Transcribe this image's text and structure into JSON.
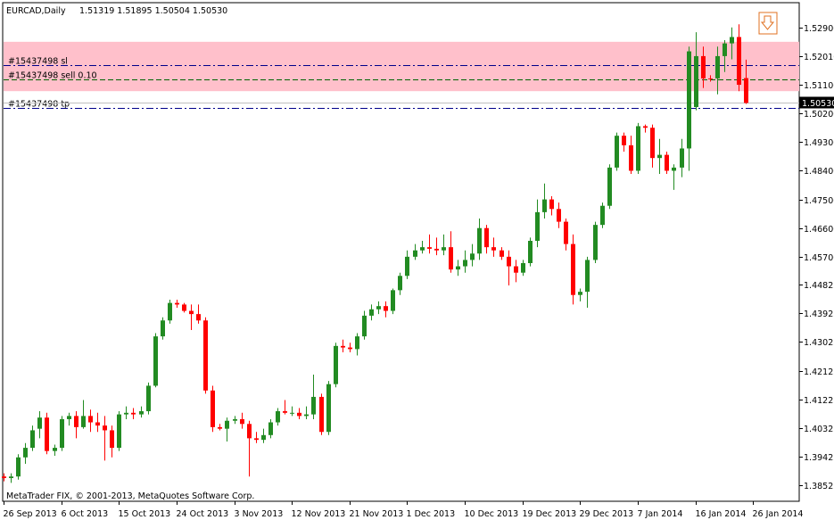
{
  "chart_data": {
    "type": "candlestick",
    "symbol_label": "EURCAD,Daily",
    "ohlc_header": "1.51319 1.51895 1.50504 1.50530",
    "copyright": "MetaTrader FIX, © 2001-2013, MetaQuotes Software Corp.",
    "price_range": [
      1.3805,
      1.5365
    ],
    "price_ticks": [
      "1.52900",
      "1.52010",
      "1.51100",
      "1.50200",
      "1.49300",
      "1.48400",
      "1.47500",
      "1.46600",
      "1.45700",
      "1.44825",
      "1.43925",
      "1.43025",
      "1.42125",
      "1.41225",
      "1.40325",
      "1.39425",
      "1.38525"
    ],
    "x_labels": [
      {
        "bar": 0,
        "text": "26 Sep 2013"
      },
      {
        "bar": 8,
        "text": "6 Oct 2013"
      },
      {
        "bar": 16,
        "text": "15 Oct 2013"
      },
      {
        "bar": 24,
        "text": "24 Oct 2013"
      },
      {
        "bar": 32,
        "text": "3 Nov 2013"
      },
      {
        "bar": 40,
        "text": "12 Nov 2013"
      },
      {
        "bar": 48,
        "text": "21 Nov 2013"
      },
      {
        "bar": 56,
        "text": "1 Dec 2013"
      },
      {
        "bar": 64,
        "text": "10 Dec 2013"
      },
      {
        "bar": 72,
        "text": "19 Dec 2013"
      },
      {
        "bar": 80,
        "text": "29 Dec 2013"
      },
      {
        "bar": 88,
        "text": "7 Jan 2014"
      },
      {
        "bar": 96,
        "text": "16 Jan 2014"
      },
      {
        "bar": 104,
        "text": "26 Jan 2014"
      }
    ],
    "current_price": "1.50530",
    "order_lines": [
      {
        "label": "#15437498 sl",
        "price": 1.5172,
        "color": "#00008b"
      },
      {
        "label": "#15437498 sell 0.10",
        "price": 1.5126,
        "color": "#006400"
      },
      {
        "label": "#15437498 tp",
        "price": 1.5036,
        "color": "#00008b"
      }
    ],
    "zone": {
      "top": 1.5245,
      "bottom": 1.509,
      "color": "#ffc0cb"
    },
    "arrow_bar": 106,
    "candles": [
      [
        1.388,
        1.389,
        1.3865,
        1.3875
      ],
      [
        1.3875,
        1.389,
        1.386,
        1.388
      ],
      [
        1.388,
        1.395,
        1.387,
        1.394
      ],
      [
        1.394,
        1.3985,
        1.392,
        1.397
      ],
      [
        1.397,
        1.404,
        1.396,
        1.4025
      ],
      [
        1.403,
        1.4085,
        1.4,
        1.4065
      ],
      [
        1.4065,
        1.408,
        1.395,
        1.396
      ],
      [
        1.396,
        1.398,
        1.3945,
        1.397
      ],
      [
        1.397,
        1.407,
        1.396,
        1.406
      ],
      [
        1.406,
        1.408,
        1.404,
        1.407
      ],
      [
        1.407,
        1.4085,
        1.4,
        1.4035
      ],
      [
        1.4035,
        1.412,
        1.403,
        1.407
      ],
      [
        1.407,
        1.409,
        1.402,
        1.405
      ],
      [
        1.405,
        1.408,
        1.402,
        1.404
      ],
      [
        1.404,
        1.407,
        1.393,
        1.4025
      ],
      [
        1.4025,
        1.404,
        1.394,
        1.397
      ],
      [
        1.397,
        1.4085,
        1.396,
        1.4075
      ],
      [
        1.4075,
        1.41,
        1.406,
        1.408
      ],
      [
        1.408,
        1.4095,
        1.406,
        1.4075
      ],
      [
        1.4075,
        1.41,
        1.4065,
        1.4085
      ],
      [
        1.4085,
        1.4175,
        1.4075,
        1.4165
      ],
      [
        1.4165,
        1.433,
        1.416,
        1.432
      ],
      [
        1.432,
        1.438,
        1.431,
        1.437
      ],
      [
        1.437,
        1.4435,
        1.436,
        1.4425
      ],
      [
        1.4425,
        1.4435,
        1.441,
        1.442
      ],
      [
        1.442,
        1.4425,
        1.4395,
        1.44
      ],
      [
        1.44,
        1.442,
        1.434,
        1.439
      ],
      [
        1.439,
        1.442,
        1.436,
        1.437
      ],
      [
        1.437,
        1.438,
        1.414,
        1.415
      ],
      [
        1.415,
        1.4165,
        1.402,
        1.4035
      ],
      [
        1.4035,
        1.4045,
        1.4025,
        1.403
      ],
      [
        1.403,
        1.4065,
        1.399,
        1.4055
      ],
      [
        1.4055,
        1.407,
        1.4045,
        1.406
      ],
      [
        1.406,
        1.408,
        1.403,
        1.4045
      ],
      [
        1.4045,
        1.4055,
        1.388,
        1.4
      ],
      [
        1.4,
        1.402,
        1.3985,
        1.3995
      ],
      [
        1.3995,
        1.403,
        1.3985,
        1.401
      ],
      [
        1.401,
        1.406,
        1.4,
        1.405
      ],
      [
        1.405,
        1.4095,
        1.404,
        1.4085
      ],
      [
        1.4085,
        1.412,
        1.4075,
        1.408
      ],
      [
        1.408,
        1.41,
        1.407,
        1.408
      ],
      [
        1.408,
        1.4095,
        1.406,
        1.407
      ],
      [
        1.407,
        1.41,
        1.406,
        1.4075
      ],
      [
        1.4075,
        1.42,
        1.406,
        1.413
      ],
      [
        1.413,
        1.414,
        1.401,
        1.402
      ],
      [
        1.402,
        1.418,
        1.401,
        1.417
      ],
      [
        1.417,
        1.43,
        1.416,
        1.429
      ],
      [
        1.429,
        1.431,
        1.427,
        1.4285
      ],
      [
        1.4285,
        1.43,
        1.427,
        1.428
      ],
      [
        1.428,
        1.433,
        1.426,
        1.432
      ],
      [
        1.432,
        1.44,
        1.431,
        1.4385
      ],
      [
        1.4385,
        1.442,
        1.437,
        1.4405
      ],
      [
        1.4405,
        1.443,
        1.439,
        1.4415
      ],
      [
        1.4415,
        1.443,
        1.438,
        1.44
      ],
      [
        1.44,
        1.447,
        1.439,
        1.4465
      ],
      [
        1.4465,
        1.452,
        1.445,
        1.451
      ],
      [
        1.451,
        1.459,
        1.45,
        1.457
      ],
      [
        1.457,
        1.461,
        1.456,
        1.459
      ],
      [
        1.459,
        1.462,
        1.458,
        1.46
      ],
      [
        1.46,
        1.464,
        1.458,
        1.4595
      ],
      [
        1.4595,
        1.463,
        1.4575,
        1.459
      ],
      [
        1.459,
        1.464,
        1.4575,
        1.46
      ],
      [
        1.46,
        1.465,
        1.452,
        1.453
      ],
      [
        1.453,
        1.456,
        1.451,
        1.454
      ],
      [
        1.454,
        1.459,
        1.452,
        1.456
      ],
      [
        1.456,
        1.461,
        1.454,
        1.458
      ],
      [
        1.458,
        1.469,
        1.456,
        1.466
      ],
      [
        1.466,
        1.467,
        1.458,
        1.46
      ],
      [
        1.46,
        1.463,
        1.457,
        1.459
      ],
      [
        1.459,
        1.46,
        1.456,
        1.457
      ],
      [
        1.457,
        1.459,
        1.448,
        1.454
      ],
      [
        1.454,
        1.456,
        1.449,
        1.452
      ],
      [
        1.452,
        1.456,
        1.451,
        1.455
      ],
      [
        1.455,
        1.463,
        1.454,
        1.462
      ],
      [
        1.462,
        1.475,
        1.46,
        1.471
      ],
      [
        1.471,
        1.48,
        1.469,
        1.475
      ],
      [
        1.475,
        1.476,
        1.47,
        1.472
      ],
      [
        1.472,
        1.474,
        1.466,
        1.468
      ],
      [
        1.468,
        1.469,
        1.459,
        1.461
      ],
      [
        1.461,
        1.464,
        1.442,
        1.445
      ],
      [
        1.445,
        1.447,
        1.443,
        1.446
      ],
      [
        1.446,
        1.457,
        1.441,
        1.456
      ],
      [
        1.456,
        1.468,
        1.455,
        1.467
      ],
      [
        1.467,
        1.474,
        1.466,
        1.473
      ],
      [
        1.473,
        1.486,
        1.472,
        1.485
      ],
      [
        1.485,
        1.496,
        1.484,
        1.495
      ],
      [
        1.495,
        1.496,
        1.49,
        1.492
      ],
      [
        1.492,
        1.495,
        1.483,
        1.484
      ],
      [
        1.484,
        1.499,
        1.483,
        1.498
      ],
      [
        1.498,
        1.4985,
        1.496,
        1.4975
      ],
      [
        1.4975,
        1.4985,
        1.485,
        1.488
      ],
      [
        1.488,
        1.494,
        1.483,
        1.489
      ],
      [
        1.489,
        1.49,
        1.483,
        1.484
      ],
      [
        1.484,
        1.486,
        1.478,
        1.485
      ],
      [
        1.485,
        1.494,
        1.482,
        1.491
      ],
      [
        1.491,
        1.523,
        1.484,
        1.5215
      ],
      [
        1.504,
        1.5275,
        1.503,
        1.52
      ],
      [
        1.52,
        1.523,
        1.51,
        1.513
      ],
      [
        1.513,
        1.514,
        1.512,
        1.5128
      ],
      [
        1.513,
        1.523,
        1.508,
        1.52
      ],
      [
        1.52,
        1.525,
        1.515,
        1.524
      ],
      [
        1.524,
        1.529,
        1.519,
        1.526
      ],
      [
        1.526,
        1.53,
        1.509,
        1.511
      ],
      [
        1.5131,
        1.5189,
        1.505,
        1.5053
      ]
    ]
  }
}
